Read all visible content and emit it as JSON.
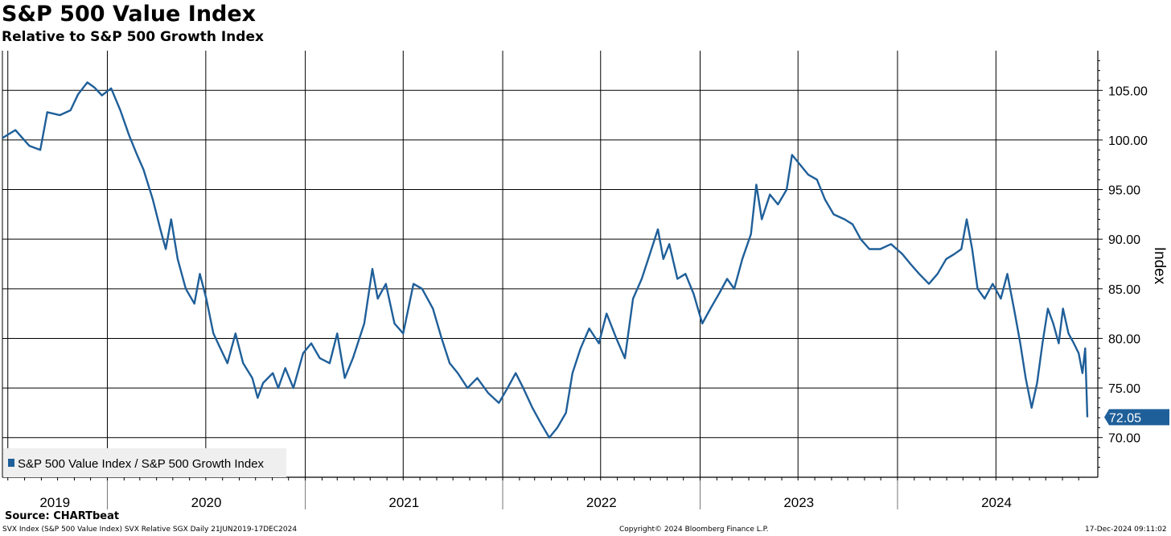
{
  "chart_data": {
    "type": "line",
    "title": "S&P 500 Value Index",
    "subtitle": "Relative to S&P 500 Growth Index",
    "ylabel": "Index",
    "ylim": [
      66,
      109
    ],
    "yticks": [
      70,
      75,
      80,
      85,
      90,
      95,
      100,
      105
    ],
    "ytick_labels": [
      "70.00",
      "75.00",
      "80.00",
      "85.00",
      "90.00",
      "95.00",
      "100.00",
      "105.00"
    ],
    "x_start": "2019-06-21",
    "x_end": "2024-12-17",
    "year_labels": [
      "2019",
      "2020",
      "2021",
      "2022",
      "2023",
      "2024"
    ],
    "grid": true,
    "legend_position": "bottom-left",
    "last_value_label": "72.05",
    "series": [
      {
        "name": "S&P 500 Value Index / S&P 500 Growth Index",
        "color": "#1f5f99",
        "points": [
          [
            "2019-06-21",
            100.2
          ],
          [
            "2019-07-15",
            101.0
          ],
          [
            "2019-08-10",
            99.4
          ],
          [
            "2019-08-30",
            99.0
          ],
          [
            "2019-09-12",
            102.8
          ],
          [
            "2019-10-05",
            102.5
          ],
          [
            "2019-10-25",
            103.0
          ],
          [
            "2019-11-08",
            104.6
          ],
          [
            "2019-11-25",
            105.8
          ],
          [
            "2019-12-08",
            105.3
          ],
          [
            "2019-12-22",
            104.5
          ],
          [
            "2020-01-08",
            105.2
          ],
          [
            "2020-01-25",
            103.0
          ],
          [
            "2020-02-10",
            100.5
          ],
          [
            "2020-02-25",
            98.5
          ],
          [
            "2020-03-08",
            97.0
          ],
          [
            "2020-03-25",
            94.0
          ],
          [
            "2020-04-08",
            91.0
          ],
          [
            "2020-04-18",
            89.0
          ],
          [
            "2020-04-28",
            92.0
          ],
          [
            "2020-05-10",
            88.0
          ],
          [
            "2020-05-25",
            85.0
          ],
          [
            "2020-06-10",
            83.5
          ],
          [
            "2020-06-20",
            86.5
          ],
          [
            "2020-07-02",
            84.0
          ],
          [
            "2020-07-15",
            80.5
          ],
          [
            "2020-07-28",
            79.0
          ],
          [
            "2020-08-10",
            77.5
          ],
          [
            "2020-08-25",
            80.5
          ],
          [
            "2020-09-08",
            77.5
          ],
          [
            "2020-09-25",
            76.0
          ],
          [
            "2020-10-05",
            74.0
          ],
          [
            "2020-10-15",
            75.5
          ],
          [
            "2020-11-02",
            76.5
          ],
          [
            "2020-11-12",
            75.0
          ],
          [
            "2020-11-25",
            77.0
          ],
          [
            "2020-12-10",
            75.0
          ],
          [
            "2020-12-28",
            78.5
          ],
          [
            "2021-01-12",
            79.5
          ],
          [
            "2021-01-28",
            78.0
          ],
          [
            "2021-02-15",
            77.5
          ],
          [
            "2021-03-01",
            80.5
          ],
          [
            "2021-03-15",
            76.0
          ],
          [
            "2021-03-30",
            78.0
          ],
          [
            "2021-04-20",
            81.5
          ],
          [
            "2021-05-05",
            87.0
          ],
          [
            "2021-05-15",
            84.0
          ],
          [
            "2021-05-30",
            85.5
          ],
          [
            "2021-06-15",
            81.5
          ],
          [
            "2021-07-01",
            80.5
          ],
          [
            "2021-07-20",
            85.5
          ],
          [
            "2021-08-05",
            85.0
          ],
          [
            "2021-08-25",
            83.0
          ],
          [
            "2021-09-10",
            80.0
          ],
          [
            "2021-09-25",
            77.5
          ],
          [
            "2021-10-10",
            76.5
          ],
          [
            "2021-10-28",
            75.0
          ],
          [
            "2021-11-15",
            76.0
          ],
          [
            "2021-12-05",
            74.5
          ],
          [
            "2021-12-25",
            73.5
          ],
          [
            "2022-01-10",
            75.0
          ],
          [
            "2022-01-25",
            76.5
          ],
          [
            "2022-02-08",
            75.0
          ],
          [
            "2022-02-25",
            73.0
          ],
          [
            "2022-03-12",
            71.5
          ],
          [
            "2022-03-28",
            70.0
          ],
          [
            "2022-04-12",
            71.0
          ],
          [
            "2022-04-28",
            72.5
          ],
          [
            "2022-05-10",
            76.5
          ],
          [
            "2022-05-25",
            79.0
          ],
          [
            "2022-06-10",
            81.0
          ],
          [
            "2022-06-28",
            79.5
          ],
          [
            "2022-07-12",
            82.5
          ],
          [
            "2022-07-30",
            80.0
          ],
          [
            "2022-08-15",
            78.0
          ],
          [
            "2022-08-30",
            84.0
          ],
          [
            "2022-09-15",
            86.0
          ],
          [
            "2022-09-30",
            88.5
          ],
          [
            "2022-10-15",
            91.0
          ],
          [
            "2022-10-25",
            88.0
          ],
          [
            "2022-11-05",
            89.5
          ],
          [
            "2022-11-20",
            86.0
          ],
          [
            "2022-12-05",
            86.5
          ],
          [
            "2022-12-20",
            84.5
          ],
          [
            "2023-01-05",
            81.5
          ],
          [
            "2023-01-20",
            83.0
          ],
          [
            "2023-02-05",
            84.5
          ],
          [
            "2023-02-20",
            86.0
          ],
          [
            "2023-03-05",
            85.0
          ],
          [
            "2023-03-20",
            88.0
          ],
          [
            "2023-04-05",
            90.5
          ],
          [
            "2023-04-15",
            95.5
          ],
          [
            "2023-04-25",
            92.0
          ],
          [
            "2023-05-10",
            94.5
          ],
          [
            "2023-05-25",
            93.5
          ],
          [
            "2023-06-10",
            95.0
          ],
          [
            "2023-06-20",
            98.5
          ],
          [
            "2023-07-05",
            97.5
          ],
          [
            "2023-07-20",
            96.5
          ],
          [
            "2023-08-05",
            96.0
          ],
          [
            "2023-08-20",
            94.0
          ],
          [
            "2023-09-05",
            92.5
          ],
          [
            "2023-09-25",
            92.0
          ],
          [
            "2023-10-10",
            91.5
          ],
          [
            "2023-10-25",
            90.0
          ],
          [
            "2023-11-10",
            89.0
          ],
          [
            "2023-11-30",
            89.0
          ],
          [
            "2023-12-20",
            89.5
          ],
          [
            "2024-01-10",
            88.5
          ],
          [
            "2024-01-25",
            87.5
          ],
          [
            "2024-02-10",
            86.5
          ],
          [
            "2024-02-28",
            85.5
          ],
          [
            "2024-03-15",
            86.5
          ],
          [
            "2024-03-31",
            88.0
          ],
          [
            "2024-04-15",
            88.5
          ],
          [
            "2024-04-28",
            89.0
          ],
          [
            "2024-05-08",
            92.0
          ],
          [
            "2024-05-18",
            89.0
          ],
          [
            "2024-05-28",
            85.0
          ],
          [
            "2024-06-10",
            84.0
          ],
          [
            "2024-06-25",
            85.5
          ],
          [
            "2024-07-10",
            84.0
          ],
          [
            "2024-07-22",
            86.5
          ],
          [
            "2024-08-05",
            82.5
          ],
          [
            "2024-08-15",
            79.5
          ],
          [
            "2024-08-25",
            76.0
          ],
          [
            "2024-09-05",
            73.0
          ],
          [
            "2024-09-15",
            75.5
          ],
          [
            "2024-09-25",
            79.5
          ],
          [
            "2024-10-05",
            83.0
          ],
          [
            "2024-10-15",
            81.5
          ],
          [
            "2024-10-25",
            79.5
          ],
          [
            "2024-11-02",
            83.0
          ],
          [
            "2024-11-12",
            80.5
          ],
          [
            "2024-11-22",
            79.5
          ],
          [
            "2024-12-01",
            78.5
          ],
          [
            "2024-12-08",
            76.5
          ],
          [
            "2024-12-13",
            79.0
          ],
          [
            "2024-12-17",
            72.05
          ]
        ]
      }
    ]
  },
  "footer": {
    "source": "Source: CHARTbeat",
    "left": "SVX Index (S&P 500 Value Index) SVX Relative SGX  Daily 21JUN2019-17DEC2024",
    "center": "Copyright© 2024 Bloomberg Finance L.P.",
    "right": "17-Dec-2024 09:11:02"
  }
}
